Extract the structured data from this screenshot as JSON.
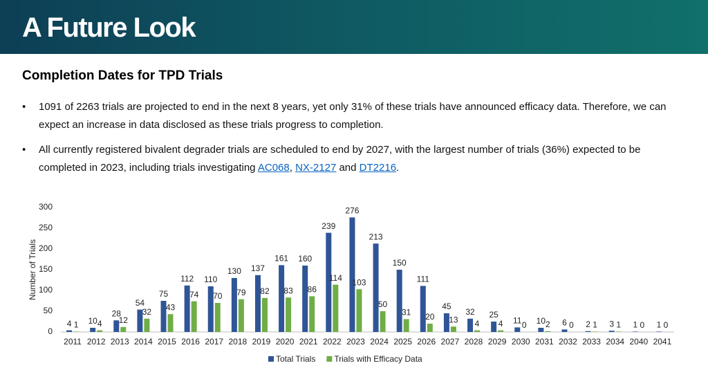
{
  "header": {
    "title": "A Future Look"
  },
  "heading": "Completion Dates for TPD Trials",
  "bullets": [
    [
      "1091 of 2263 trials are projected to end in the next 8 years, yet only 31% of these trials have announced efficacy data. Therefore, we can expect an increase in data disclosed as these trials progress to completion."
    ],
    [
      "All currently registered bivalent degrader trials are scheduled to end by 2027, with the largest number of trials (36%) expected to be completed in 2023, including trials investigating ",
      "AC068",
      ", ",
      "NX-2127",
      " and ",
      "DT2216",
      "."
    ]
  ],
  "chart_data": {
    "type": "bar",
    "y_label": "Number of Trials",
    "categories": [
      "2011",
      "2012",
      "2013",
      "2014",
      "2015",
      "2016",
      "2017",
      "2018",
      "2019",
      "2020",
      "2021",
      "2022",
      "2023",
      "2024",
      "2025",
      "2026",
      "2027",
      "2028",
      "2029",
      "2030",
      "2031",
      "2032",
      "2033",
      "2034",
      "2040",
      "2041"
    ],
    "series": [
      {
        "name": "Total Trials",
        "color": "#2f5597",
        "values": [
          4,
          10,
          28,
          54,
          75,
          112,
          110,
          130,
          137,
          161,
          160,
          239,
          276,
          213,
          150,
          111,
          45,
          32,
          25,
          11,
          10,
          6,
          2,
          3,
          1,
          1
        ]
      },
      {
        "name": "Trials with Efficacy Data",
        "color": "#70ad47",
        "values": [
          1,
          4,
          12,
          32,
          43,
          74,
          70,
          79,
          82,
          83,
          86,
          114,
          103,
          50,
          31,
          20,
          13,
          4,
          4,
          0,
          2,
          0,
          1,
          1,
          0,
          0
        ]
      }
    ],
    "ylim": [
      0,
      300
    ],
    "yticks": [
      0,
      50,
      100,
      150,
      200,
      250,
      300
    ],
    "legend": "bottom"
  }
}
